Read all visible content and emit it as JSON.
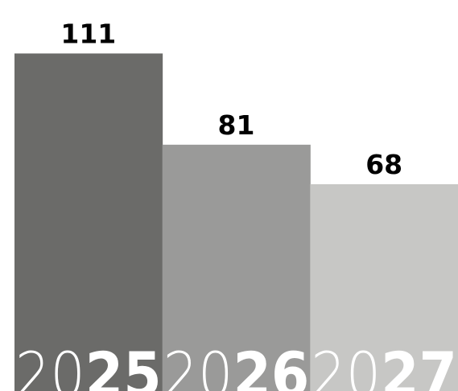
{
  "chart_data": {
    "type": "bar",
    "title": "",
    "xlabel": "",
    "ylabel": "",
    "categories": [
      {
        "prefix": "20",
        "suffix": "25"
      },
      {
        "prefix": "20",
        "suffix": "26"
      },
      {
        "prefix": "20",
        "suffix": "27"
      }
    ],
    "values": [
      111,
      81,
      68
    ],
    "value_labels": [
      "111",
      "81",
      "68"
    ],
    "ylim": [
      0,
      118
    ],
    "grid": false,
    "legend": "none",
    "colors": [
      "#6b6b69",
      "#9a9a99",
      "#c7c7c5"
    ],
    "label_color": "#000000",
    "category_text_color": "#ffffff",
    "background": "#ffffff"
  }
}
